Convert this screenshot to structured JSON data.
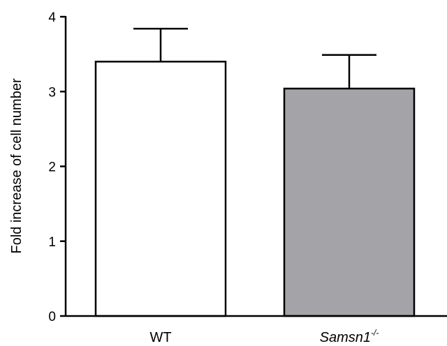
{
  "chart_data": {
    "type": "bar",
    "ylabel": "Fold increase of cell number",
    "xlabel": "",
    "ylim": [
      0,
      4
    ],
    "yticks": [
      "0",
      "1",
      "2",
      "3",
      "4"
    ],
    "categories": [
      {
        "main": "WT",
        "sup": "",
        "italic": false
      },
      {
        "main": "Samsn1",
        "sup": "-/-",
        "italic": true
      }
    ],
    "values": [
      3.4,
      3.04
    ],
    "error_upper": [
      3.84,
      3.49
    ],
    "bar_colors": [
      "#ffffff",
      "#a3a3a8"
    ],
    "edge_color": "#000000",
    "grid": false
  }
}
